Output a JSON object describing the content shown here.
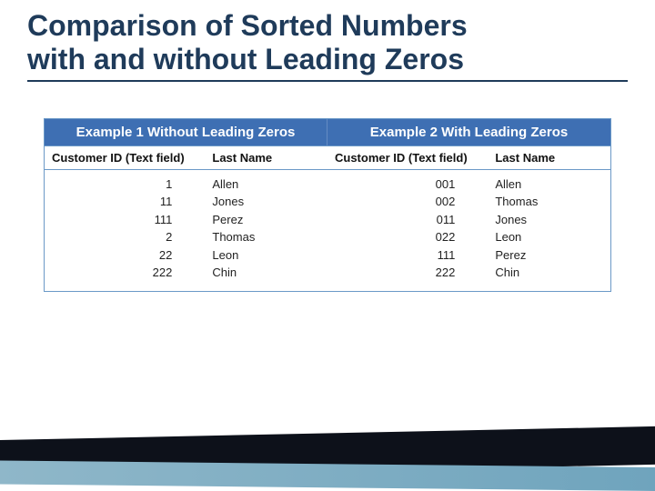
{
  "title_line1": "Comparison of Sorted Numbers",
  "title_line2": "with and without Leading Zeros",
  "table": {
    "example1_header": "Example 1 Without Leading Zeros",
    "example2_header": "Example 2 With Leading Zeros",
    "col_id_label": "Customer ID (Text field)",
    "col_lastname_label": "Last Name",
    "example1": {
      "ids": [
        "1",
        "11",
        "111",
        "2",
        "22",
        "222"
      ],
      "names": [
        "Allen",
        "Jones",
        "Perez",
        "Thomas",
        "Leon",
        "Chin"
      ]
    },
    "example2": {
      "ids": [
        "001",
        "002",
        "011",
        "022",
        "111",
        "222"
      ],
      "names": [
        "Allen",
        "Thomas",
        "Jones",
        "Leon",
        "Perez",
        "Chin"
      ]
    }
  },
  "colors": {
    "title_color": "#1f3b5a",
    "header_bg": "#3e6fb3",
    "header_text": "#ffffff",
    "border": "#6b99c7",
    "footer_dark": "#0d111a",
    "footer_light_from": "#8fb7c9",
    "footer_light_to": "#6fa4bd"
  },
  "fonts": {
    "title_size_pt": 24,
    "header_size_pt": 11,
    "body_size_pt": 10
  }
}
